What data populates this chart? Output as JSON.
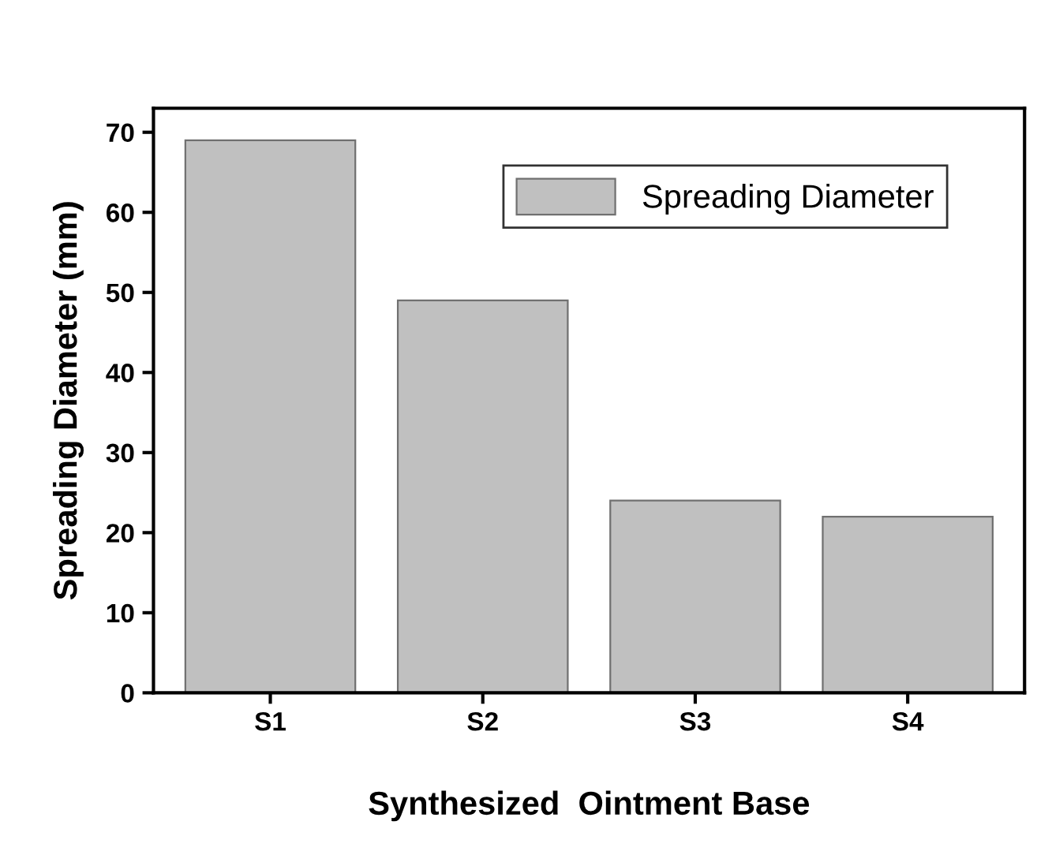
{
  "chart_data": {
    "type": "bar",
    "xlabel": "Synthesized  Ointment Base",
    "ylabel": "Spreading Diameter (mm)",
    "categories": [
      "S1",
      "S2",
      "S3",
      "S4"
    ],
    "series": [
      {
        "name": "Spreading Diameter",
        "color": "#c0c0c0",
        "values": [
          69,
          49,
          24,
          22
        ]
      }
    ],
    "ylim": [
      0,
      73
    ],
    "yticks": [
      0,
      10,
      20,
      30,
      40,
      50,
      60,
      70
    ],
    "grid": false,
    "legend": "top right"
  }
}
